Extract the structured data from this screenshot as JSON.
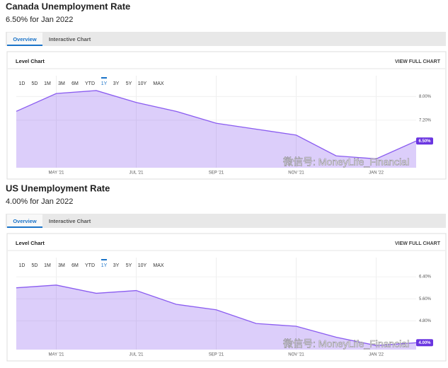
{
  "chart_data": [
    {
      "type": "area",
      "title": "Canada Unemployment Rate",
      "subtitle": "6.50% for Jan 2022",
      "categories": [
        null,
        "MAY '21",
        null,
        "JUL '21",
        null,
        "SEP '21",
        null,
        "NOV '21",
        null,
        "JAN '22",
        null
      ],
      "series": [
        {
          "color": "#8a5cf0",
          "values": [
            7.5,
            8.1,
            8.2,
            7.8,
            7.5,
            7.1,
            6.9,
            6.7,
            6.0,
            5.9,
            6.5
          ]
        }
      ],
      "end_label": "6.50%",
      "ylim": [
        5.6,
        8.7
      ],
      "yticks": [
        {
          "value": 7.2,
          "label": "7.20%"
        },
        {
          "value": 8.0,
          "label": "8.00%"
        }
      ],
      "grid": true
    },
    {
      "type": "area",
      "title": "US Unemployment Rate",
      "subtitle": "4.00% for Jan 2022",
      "categories": [
        null,
        "MAY '21",
        null,
        "JUL '21",
        null,
        "SEP '21",
        null,
        "NOV '21",
        null,
        "JAN '22",
        null
      ],
      "series": [
        {
          "color": "#8a5cf0",
          "values": [
            6.0,
            6.1,
            5.8,
            5.9,
            5.4,
            5.2,
            4.7,
            4.6,
            4.2,
            3.9,
            4.0
          ]
        }
      ],
      "end_label": "4.00%",
      "ylim": [
        3.75,
        7.1
      ],
      "yticks": [
        {
          "value": 4.8,
          "label": "4.80%"
        },
        {
          "value": 5.6,
          "label": "5.60%"
        },
        {
          "value": 6.4,
          "label": "6.40%"
        }
      ],
      "grid": true
    }
  ],
  "panels": [
    {
      "tabs": [
        "Overview",
        "Interactive Chart"
      ],
      "panel_title": "Level Chart",
      "link": "VIEW FULL CHART",
      "ranges": [
        "1D",
        "5D",
        "1M",
        "3M",
        "6M",
        "YTD",
        "1Y",
        "3Y",
        "5Y",
        "10Y",
        "MAX"
      ],
      "active_range": "1Y",
      "watermark": "微信号: MoneyLife_Financial"
    },
    {
      "tabs": [
        "Overview",
        "Interactive Chart"
      ],
      "panel_title": "Level Chart",
      "link": "VIEW FULL CHART",
      "ranges": [
        "1D",
        "5D",
        "1M",
        "3M",
        "6M",
        "YTD",
        "1Y",
        "3Y",
        "5Y",
        "10Y",
        "MAX"
      ],
      "active_range": "1Y",
      "watermark": "微信号: MoneyLife_Financial"
    }
  ]
}
